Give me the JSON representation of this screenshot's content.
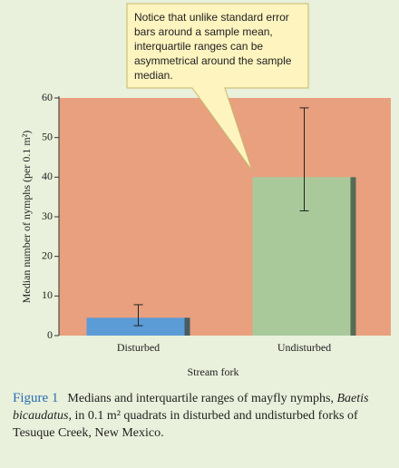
{
  "chart_data": {
    "type": "bar",
    "annotation": [
      "Notice that unlike standard error",
      "bars around a sample mean,",
      "interquartile ranges can be",
      "asymmetrical around the sample",
      "median."
    ],
    "y_label": "Median number of nymphs (per 0.1 m²)",
    "x_label": "Stream fork",
    "categories": [
      "Disturbed",
      "Undisturbed"
    ],
    "values": [
      4.5,
      40
    ],
    "q1": [
      2.5,
      31.5
    ],
    "q3": [
      7.8,
      57.5
    ],
    "colors": [
      "#5b9bd6",
      "#a9c99b"
    ],
    "ylim": [
      0,
      60
    ],
    "yticks": [
      0,
      10,
      20,
      30,
      40,
      50,
      60
    ]
  },
  "caption": {
    "label": "Figure 1",
    "parts": [
      "Medians and interquartile ranges of mayfly nymphs,",
      "Baetis bicaudatus,",
      "in 0.1 m² quadrats in disturbed and undisturbed forks of Tesuque Creek, New Mexico."
    ]
  }
}
